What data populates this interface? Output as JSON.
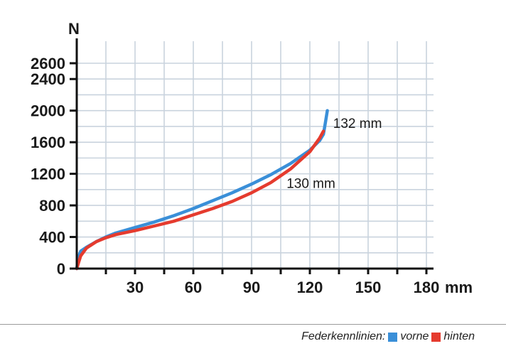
{
  "colors": {
    "vorne": "#3a8fd8",
    "hinten": "#e53b2e",
    "grid": "#c9d3de",
    "axis": "#111111"
  },
  "chart_data": {
    "type": "line",
    "xlabel": "mm",
    "ylabel": "N",
    "xlim": [
      0,
      180
    ],
    "ylim": [
      0,
      2800
    ],
    "x_ticks": [
      "30",
      "60",
      "90",
      "120",
      "150",
      "180"
    ],
    "y_ticks": [
      "0",
      "400",
      "800",
      "1200",
      "1600",
      "2000",
      "2400",
      "2600"
    ],
    "grid": true,
    "legend_position": "bottom-right",
    "series": [
      {
        "name": "vorne",
        "color_key": "vorne",
        "points": [
          [
            0,
            0
          ],
          [
            1,
            150
          ],
          [
            2,
            220
          ],
          [
            5,
            270
          ],
          [
            10,
            340
          ],
          [
            15,
            400
          ],
          [
            20,
            450
          ],
          [
            30,
            520
          ],
          [
            40,
            590
          ],
          [
            50,
            670
          ],
          [
            60,
            760
          ],
          [
            70,
            860
          ],
          [
            80,
            960
          ],
          [
            90,
            1070
          ],
          [
            100,
            1190
          ],
          [
            110,
            1330
          ],
          [
            120,
            1500
          ],
          [
            125,
            1620
          ],
          [
            127,
            1700
          ],
          [
            128,
            1850
          ],
          [
            129,
            2000
          ]
        ]
      },
      {
        "name": "hinten",
        "color_key": "hinten",
        "points": [
          [
            0,
            0
          ],
          [
            1,
            80
          ],
          [
            2,
            160
          ],
          [
            5,
            260
          ],
          [
            10,
            340
          ],
          [
            15,
            390
          ],
          [
            20,
            430
          ],
          [
            30,
            480
          ],
          [
            40,
            540
          ],
          [
            50,
            600
          ],
          [
            60,
            680
          ],
          [
            70,
            760
          ],
          [
            80,
            850
          ],
          [
            90,
            960
          ],
          [
            100,
            1090
          ],
          [
            110,
            1260
          ],
          [
            120,
            1480
          ],
          [
            125,
            1650
          ],
          [
            127,
            1740
          ]
        ]
      }
    ],
    "annotations": [
      {
        "text": "132  mm",
        "x": 132,
        "y": 1780
      },
      {
        "text": "130  mm",
        "x": 108,
        "y": 1020
      }
    ]
  },
  "legend": {
    "title": "Federkennlinien:",
    "vorne_label": "vorne",
    "hinten_label": "hinten"
  }
}
